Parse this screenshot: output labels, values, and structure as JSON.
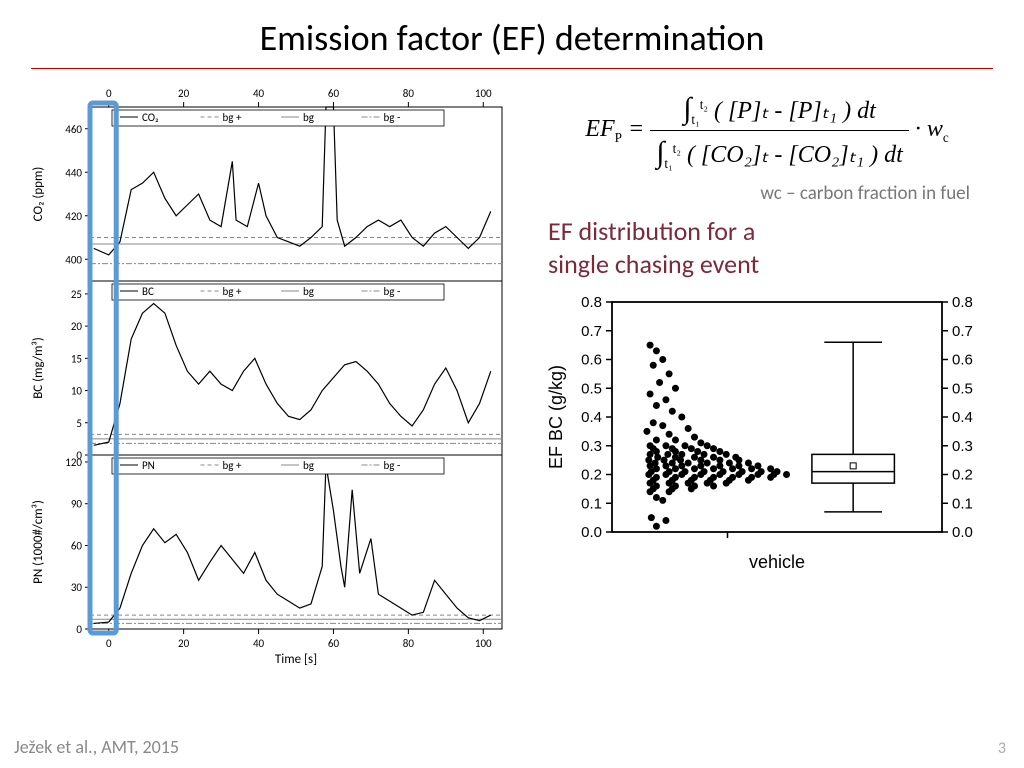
{
  "slide": {
    "title": "Emission factor (EF) determination",
    "citation": "Ježek et al., AMT, 2015",
    "page_number": "3"
  },
  "colors": {
    "title_rule": "#c00000",
    "highlight": "#5b9bd5",
    "bg_lines": "#888888",
    "trace": "#000000",
    "caption_grey": "#777777",
    "ef_title": "#7a2a3a"
  },
  "left_panels": {
    "x_axis_label": "Time [s]",
    "xlim": [
      -5,
      105
    ],
    "xticks": [
      0,
      20,
      40,
      60,
      80,
      100
    ],
    "highlight_x_range": [
      -5,
      2
    ],
    "panels": [
      {
        "id": "co2",
        "ylabel": "CO₂ (ppm)",
        "ylim": [
          390,
          470
        ],
        "yticks": [
          400,
          420,
          440,
          460
        ],
        "legend_items": [
          "CO₂",
          "bg +",
          "bg",
          "bg -"
        ],
        "bg_level": 407,
        "bg_plus": 410,
        "bg_minus": 398,
        "trace": [
          [
            -4,
            405
          ],
          [
            0,
            402
          ],
          [
            3,
            408
          ],
          [
            6,
            432
          ],
          [
            9,
            435
          ],
          [
            12,
            440
          ],
          [
            15,
            428
          ],
          [
            18,
            420
          ],
          [
            21,
            425
          ],
          [
            24,
            430
          ],
          [
            27,
            418
          ],
          [
            30,
            415
          ],
          [
            33,
            445
          ],
          [
            34,
            418
          ],
          [
            37,
            415
          ],
          [
            40,
            435
          ],
          [
            42,
            420
          ],
          [
            45,
            410
          ],
          [
            48,
            408
          ],
          [
            51,
            406
          ],
          [
            54,
            410
          ],
          [
            57,
            415
          ],
          [
            58,
            475
          ],
          [
            60,
            475
          ],
          [
            61,
            418
          ],
          [
            63,
            406
          ],
          [
            66,
            410
          ],
          [
            69,
            415
          ],
          [
            72,
            418
          ],
          [
            75,
            415
          ],
          [
            78,
            418
          ],
          [
            81,
            410
          ],
          [
            84,
            406
          ],
          [
            87,
            412
          ],
          [
            90,
            415
          ],
          [
            93,
            410
          ],
          [
            96,
            405
          ],
          [
            99,
            410
          ],
          [
            102,
            422
          ]
        ]
      },
      {
        "id": "bc",
        "ylabel": "BC (mg/m³)",
        "ylim": [
          0,
          27
        ],
        "yticks": [
          0,
          5,
          10,
          15,
          20,
          25
        ],
        "legend_items": [
          "BC",
          "bg +",
          "bg",
          "bg -"
        ],
        "bg_level": 2.5,
        "bg_plus": 3.2,
        "bg_minus": 1.8,
        "trace": [
          [
            -4,
            1.5
          ],
          [
            0,
            2
          ],
          [
            3,
            8
          ],
          [
            6,
            18
          ],
          [
            9,
            22
          ],
          [
            12,
            23.5
          ],
          [
            15,
            22
          ],
          [
            18,
            17
          ],
          [
            21,
            13
          ],
          [
            24,
            11
          ],
          [
            27,
            13
          ],
          [
            30,
            11
          ],
          [
            33,
            10
          ],
          [
            36,
            13
          ],
          [
            39,
            15
          ],
          [
            42,
            11
          ],
          [
            45,
            8
          ],
          [
            48,
            6
          ],
          [
            51,
            5.5
          ],
          [
            54,
            7
          ],
          [
            57,
            10
          ],
          [
            60,
            12
          ],
          [
            63,
            14
          ],
          [
            66,
            14.5
          ],
          [
            69,
            13
          ],
          [
            72,
            11
          ],
          [
            75,
            8
          ],
          [
            78,
            6
          ],
          [
            81,
            4.5
          ],
          [
            84,
            7
          ],
          [
            87,
            11
          ],
          [
            90,
            13.5
          ],
          [
            93,
            10
          ],
          [
            96,
            5
          ],
          [
            99,
            8
          ],
          [
            102,
            13
          ]
        ]
      },
      {
        "id": "pn",
        "ylabel": "PN (1000#/cm³)",
        "ylim": [
          0,
          125
        ],
        "yticks": [
          0,
          30,
          60,
          90,
          120
        ],
        "legend_items": [
          "PN",
          "bg +",
          "bg",
          "bg -"
        ],
        "bg_level": 7,
        "bg_plus": 10,
        "bg_minus": 4,
        "trace": [
          [
            -4,
            4
          ],
          [
            0,
            5
          ],
          [
            3,
            15
          ],
          [
            6,
            40
          ],
          [
            9,
            60
          ],
          [
            12,
            72
          ],
          [
            15,
            62
          ],
          [
            18,
            68
          ],
          [
            21,
            55
          ],
          [
            24,
            35
          ],
          [
            27,
            48
          ],
          [
            30,
            60
          ],
          [
            33,
            50
          ],
          [
            36,
            40
          ],
          [
            39,
            55
          ],
          [
            42,
            35
          ],
          [
            45,
            25
          ],
          [
            48,
            20
          ],
          [
            51,
            15
          ],
          [
            54,
            18
          ],
          [
            57,
            45
          ],
          [
            58,
            118
          ],
          [
            60,
            85
          ],
          [
            62,
            45
          ],
          [
            63,
            30
          ],
          [
            65,
            100
          ],
          [
            67,
            40
          ],
          [
            70,
            65
          ],
          [
            72,
            25
          ],
          [
            75,
            20
          ],
          [
            78,
            15
          ],
          [
            81,
            10
          ],
          [
            84,
            12
          ],
          [
            87,
            35
          ],
          [
            90,
            25
          ],
          [
            93,
            15
          ],
          [
            96,
            8
          ],
          [
            99,
            6
          ],
          [
            102,
            10
          ]
        ]
      }
    ]
  },
  "equation": {
    "lhs": "EF",
    "lhs_sub": "P",
    "integral_t1": "t₁",
    "integral_t2": "t₂",
    "numerator_body": "( [P]ₜ - [P]ₜ₁ ) dt",
    "denominator_body": "( [CO₂]ₜ - [CO₂]ₜ₁ ) dt",
    "trailing": "· w",
    "trailing_sub": "c",
    "caption": "wc – carbon fraction in fuel"
  },
  "ef_distribution": {
    "title_line1": "EF distribution for a",
    "title_line2": "single chasing event",
    "ylabel": "EF BC (g/kg)",
    "xlabel": "vehicle",
    "ylim": [
      0.0,
      0.8
    ],
    "yticks": [
      0.0,
      0.1,
      0.2,
      0.3,
      0.4,
      0.5,
      0.6,
      0.7,
      0.8
    ],
    "scatter_x_range": [
      0.5,
      2.8
    ],
    "scatter_points": [
      [
        0.6,
        0.65
      ],
      [
        0.7,
        0.63
      ],
      [
        0.8,
        0.6
      ],
      [
        0.65,
        0.58
      ],
      [
        0.9,
        0.55
      ],
      [
        0.75,
        0.52
      ],
      [
        1.0,
        0.5
      ],
      [
        0.6,
        0.48
      ],
      [
        0.85,
        0.46
      ],
      [
        0.7,
        0.44
      ],
      [
        0.95,
        0.42
      ],
      [
        1.1,
        0.4
      ],
      [
        0.65,
        0.38
      ],
      [
        0.8,
        0.37
      ],
      [
        1.2,
        0.36
      ],
      [
        0.55,
        0.35
      ],
      [
        0.9,
        0.34
      ],
      [
        1.3,
        0.33
      ],
      [
        0.7,
        0.32
      ],
      [
        1.0,
        0.32
      ],
      [
        1.4,
        0.31
      ],
      [
        0.6,
        0.3
      ],
      [
        0.85,
        0.3
      ],
      [
        1.15,
        0.3
      ],
      [
        1.5,
        0.3
      ],
      [
        0.65,
        0.29
      ],
      [
        0.95,
        0.29
      ],
      [
        1.25,
        0.29
      ],
      [
        1.6,
        0.29
      ],
      [
        0.7,
        0.28
      ],
      [
        1.0,
        0.28
      ],
      [
        1.35,
        0.28
      ],
      [
        1.7,
        0.28
      ],
      [
        0.6,
        0.27
      ],
      [
        0.88,
        0.27
      ],
      [
        1.1,
        0.27
      ],
      [
        1.45,
        0.27
      ],
      [
        1.8,
        0.27
      ],
      [
        0.72,
        0.26
      ],
      [
        1.0,
        0.26
      ],
      [
        1.3,
        0.26
      ],
      [
        1.6,
        0.26
      ],
      [
        1.95,
        0.26
      ],
      [
        0.58,
        0.25
      ],
      [
        0.82,
        0.25
      ],
      [
        1.08,
        0.25
      ],
      [
        1.4,
        0.25
      ],
      [
        1.7,
        0.25
      ],
      [
        2.0,
        0.25
      ],
      [
        0.68,
        0.24
      ],
      [
        0.95,
        0.24
      ],
      [
        1.2,
        0.24
      ],
      [
        1.5,
        0.24
      ],
      [
        1.85,
        0.24
      ],
      [
        2.15,
        0.24
      ],
      [
        0.6,
        0.23
      ],
      [
        0.85,
        0.23
      ],
      [
        1.1,
        0.23
      ],
      [
        1.4,
        0.23
      ],
      [
        1.7,
        0.23
      ],
      [
        2.0,
        0.23
      ],
      [
        2.3,
        0.23
      ],
      [
        0.7,
        0.22
      ],
      [
        1.0,
        0.22
      ],
      [
        1.3,
        0.22
      ],
      [
        1.6,
        0.22
      ],
      [
        1.9,
        0.22
      ],
      [
        2.2,
        0.22
      ],
      [
        2.5,
        0.22
      ],
      [
        0.62,
        0.21
      ],
      [
        0.9,
        0.21
      ],
      [
        1.15,
        0.21
      ],
      [
        1.45,
        0.21
      ],
      [
        1.75,
        0.21
      ],
      [
        2.05,
        0.21
      ],
      [
        2.35,
        0.21
      ],
      [
        2.6,
        0.21
      ],
      [
        0.58,
        0.2
      ],
      [
        0.85,
        0.2
      ],
      [
        1.1,
        0.2
      ],
      [
        1.4,
        0.2
      ],
      [
        1.7,
        0.2
      ],
      [
        2.0,
        0.2
      ],
      [
        2.3,
        0.2
      ],
      [
        2.55,
        0.2
      ],
      [
        2.75,
        0.2
      ],
      [
        0.7,
        0.19
      ],
      [
        1.0,
        0.19
      ],
      [
        1.3,
        0.19
      ],
      [
        1.6,
        0.19
      ],
      [
        1.9,
        0.19
      ],
      [
        2.2,
        0.19
      ],
      [
        2.5,
        0.19
      ],
      [
        0.65,
        0.18
      ],
      [
        0.95,
        0.18
      ],
      [
        1.25,
        0.18
      ],
      [
        1.55,
        0.18
      ],
      [
        1.85,
        0.18
      ],
      [
        2.15,
        0.18
      ],
      [
        0.6,
        0.17
      ],
      [
        0.9,
        0.17
      ],
      [
        1.2,
        0.17
      ],
      [
        1.5,
        0.17
      ],
      [
        1.8,
        0.17
      ],
      [
        0.7,
        0.16
      ],
      [
        1.0,
        0.16
      ],
      [
        1.3,
        0.16
      ],
      [
        1.6,
        0.16
      ],
      [
        0.65,
        0.15
      ],
      [
        0.95,
        0.15
      ],
      [
        1.25,
        0.15
      ],
      [
        0.6,
        0.14
      ],
      [
        0.9,
        0.14
      ],
      [
        0.7,
        0.12
      ],
      [
        0.8,
        0.11
      ],
      [
        0.62,
        0.05
      ],
      [
        0.85,
        0.04
      ],
      [
        0.7,
        0.02
      ]
    ],
    "boxplot": {
      "x_center": 3.8,
      "box_width": 1.3,
      "q1": 0.17,
      "median": 0.21,
      "q3": 0.27,
      "mean": 0.23,
      "whisker_low": 0.07,
      "whisker_high": 0.66
    }
  }
}
